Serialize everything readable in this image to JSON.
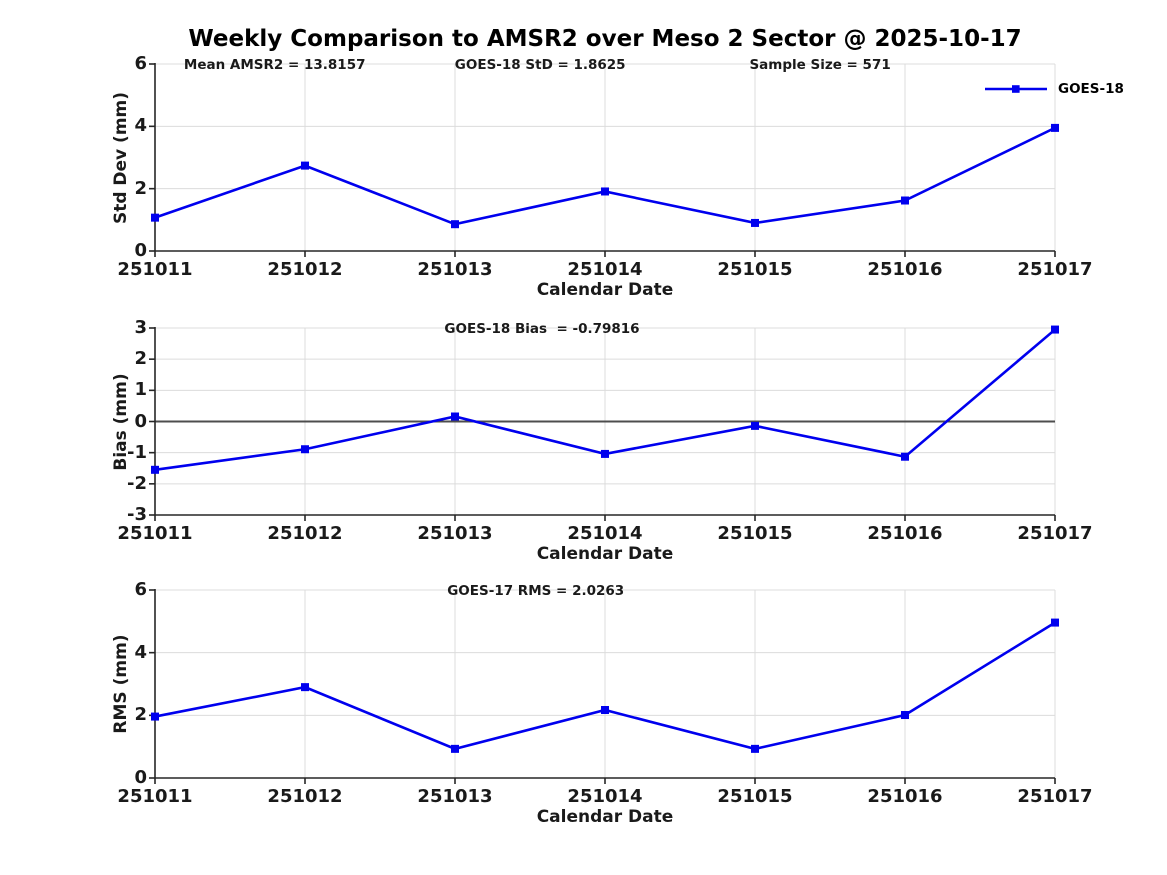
{
  "title": "Weekly Comparison to AMSR2 over Meso 2 Sector @ 2025-10-17",
  "legend": {
    "label": "GOES-18",
    "position": "top-right"
  },
  "colors": {
    "series": "#0000EE",
    "grid": "#DCDCDC",
    "axis": "#262626",
    "zero_line": "#4D4D4D",
    "text": "#1A1A1A"
  },
  "chart_data": [
    {
      "type": "line",
      "title": "",
      "xlabel": "Calendar Date",
      "ylabel": "Std Dev (mm)",
      "ylim": [
        0,
        6
      ],
      "yticks": [
        0,
        2,
        4,
        6
      ],
      "grid": true,
      "zero_line": false,
      "categories": [
        "251011",
        "251012",
        "251013",
        "251014",
        "251015",
        "251016",
        "251017"
      ],
      "series": [
        {
          "name": "GOES-18",
          "marker": "square",
          "values": [
            1.07,
            2.74,
            0.86,
            1.91,
            0.9,
            1.62,
            3.95
          ]
        }
      ],
      "annotations": [
        {
          "text": "Mean AMSR2 = 13.8157",
          "xfrac": 0.133
        },
        {
          "text": "GOES-18 StD = 1.8625",
          "xfrac": 0.428
        },
        {
          "text": "Sample Size = 571",
          "xfrac": 0.739
        }
      ],
      "legend_visible": true
    },
    {
      "type": "line",
      "title": "",
      "xlabel": "Calendar Date",
      "ylabel": "Bias (mm)",
      "ylim": [
        -3,
        3
      ],
      "yticks": [
        -3,
        -2,
        -1,
        0,
        1,
        2,
        3
      ],
      "grid": true,
      "zero_line": true,
      "categories": [
        "251011",
        "251012",
        "251013",
        "251014",
        "251015",
        "251016",
        "251017"
      ],
      "series": [
        {
          "name": "GOES-18",
          "marker": "square",
          "values": [
            -1.55,
            -0.89,
            0.16,
            -1.04,
            -0.14,
            -1.13,
            2.95
          ]
        }
      ],
      "annotations": [
        {
          "text": "GOES-18 Bias  = -0.79816",
          "xfrac": 0.43
        }
      ],
      "legend_visible": false
    },
    {
      "type": "line",
      "title": "",
      "xlabel": "Calendar Date",
      "ylabel": "RMS (mm)",
      "ylim": [
        0,
        6
      ],
      "yticks": [
        0,
        2,
        4,
        6
      ],
      "grid": true,
      "zero_line": false,
      "categories": [
        "251011",
        "251012",
        "251013",
        "251014",
        "251015",
        "251016",
        "251017"
      ],
      "series": [
        {
          "name": "GOES-18",
          "marker": "square",
          "values": [
            1.96,
            2.9,
            0.93,
            2.17,
            0.93,
            2.01,
            4.96
          ]
        }
      ],
      "annotations": [
        {
          "text": "GOES-17 RMS = 2.0263",
          "xfrac": 0.423
        }
      ],
      "legend_visible": false
    }
  ]
}
